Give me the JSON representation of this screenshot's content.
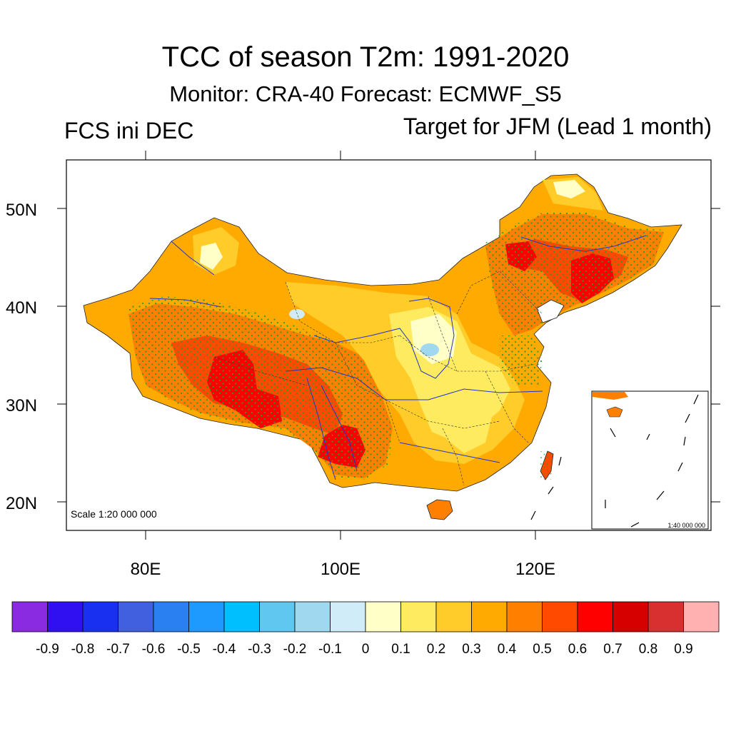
{
  "title": "TCC of season T2m: 1991-2020",
  "subtitle": "Monitor: CRA-40   Forecast: ECMWF_S5",
  "left_label": "FCS ini DEC",
  "right_label": "Target for JFM (Lead 1 month)",
  "scale_main": "Scale 1:20 000 000",
  "scale_inset": "1:40 000 000",
  "lat_labels": [
    "50N",
    "40N",
    "30N",
    "20N"
  ],
  "lon_labels": [
    "80E",
    "100E",
    "120E"
  ],
  "colorbar": {
    "colors": [
      "#8a2be2",
      "#3010f0",
      "#1a30f0",
      "#4060e0",
      "#2a80f0",
      "#1e9aff",
      "#00bfff",
      "#60c8f0",
      "#a0d8f0",
      "#d0ecf8",
      "#ffffc8",
      "#ffeb60",
      "#ffcc2a",
      "#ffaa00",
      "#ff8000",
      "#ff4a00",
      "#ff0000",
      "#d70000",
      "#d83030",
      "#ffb0b0"
    ],
    "labels": [
      "-0.9",
      "-0.8",
      "-0.7",
      "-0.6",
      "-0.5",
      "-0.4",
      "-0.3",
      "-0.2",
      "-0.1",
      "0",
      "0.1",
      "0.2",
      "0.3",
      "0.4",
      "0.5",
      "0.6",
      "0.7",
      "0.8",
      "0.9"
    ]
  },
  "colors": {
    "base_fill": "#ffaa00",
    "stipple": "#2a9a2a",
    "rivers": "#2233cc",
    "borders": "#333333"
  }
}
